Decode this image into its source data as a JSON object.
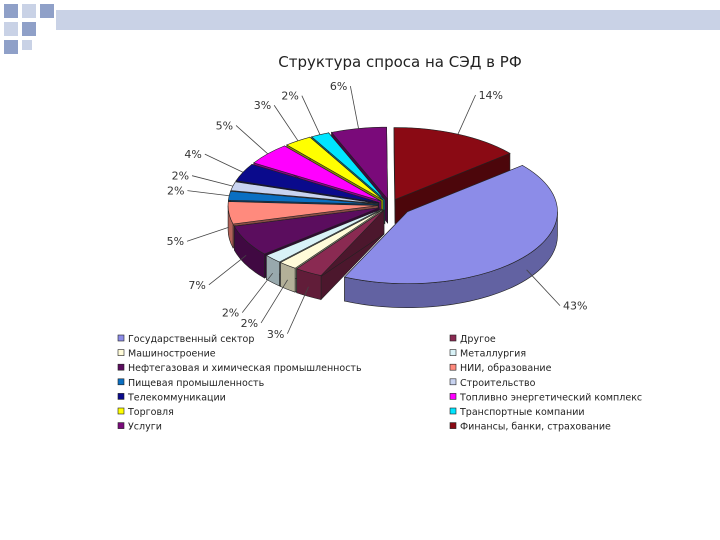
{
  "chart_data": {
    "type": "pie",
    "title": "Структура спроса на СЭД в РФ",
    "slices": [
      {
        "name": "Государственный сектор",
        "value": 43,
        "label": "43%",
        "color": "#8c8ce8"
      },
      {
        "name": "Другое",
        "value": 3,
        "label": "3%",
        "color": "#8a2a52"
      },
      {
        "name": "Машиностроение",
        "value": 2,
        "label": "2%",
        "color": "#fffbd9"
      },
      {
        "name": "Металлургия",
        "value": 2,
        "label": "2%",
        "color": "#d9f2f7"
      },
      {
        "name": "Нефтегазовая и химическая промышленность",
        "value": 7,
        "label": "7%",
        "color": "#5b0d5e"
      },
      {
        "name": "НИИ, образование",
        "value": 5,
        "label": "5%",
        "color": "#ff8a7d"
      },
      {
        "name": "Пищевая промышленность",
        "value": 2,
        "label": "2%",
        "color": "#0a6fc2"
      },
      {
        "name": "Строительство",
        "value": 2,
        "label": "2%",
        "color": "#c8d3f0"
      },
      {
        "name": "Телекоммуникации",
        "value": 4,
        "label": "4%",
        "color": "#0a0a8c"
      },
      {
        "name": "Топливно энергетический комплекс",
        "value": 5,
        "label": "5%",
        "color": "#ff00ff"
      },
      {
        "name": "Торговля",
        "value": 3,
        "label": "3%",
        "color": "#ffff00"
      },
      {
        "name": "Транспортные компании",
        "value": 2,
        "label": "2%",
        "color": "#00e5ff"
      },
      {
        "name": "Услуги",
        "value": 6,
        "label": "6%",
        "color": "#7a0a7a"
      },
      {
        "name": "Финансы, банки, страхование",
        "value": 14,
        "label": "14%",
        "color": "#8a0a14"
      }
    ],
    "legend_placement": "bottom, two columns"
  },
  "decor_colors": [
    "#8fa0c8",
    "#c9d2e6"
  ]
}
